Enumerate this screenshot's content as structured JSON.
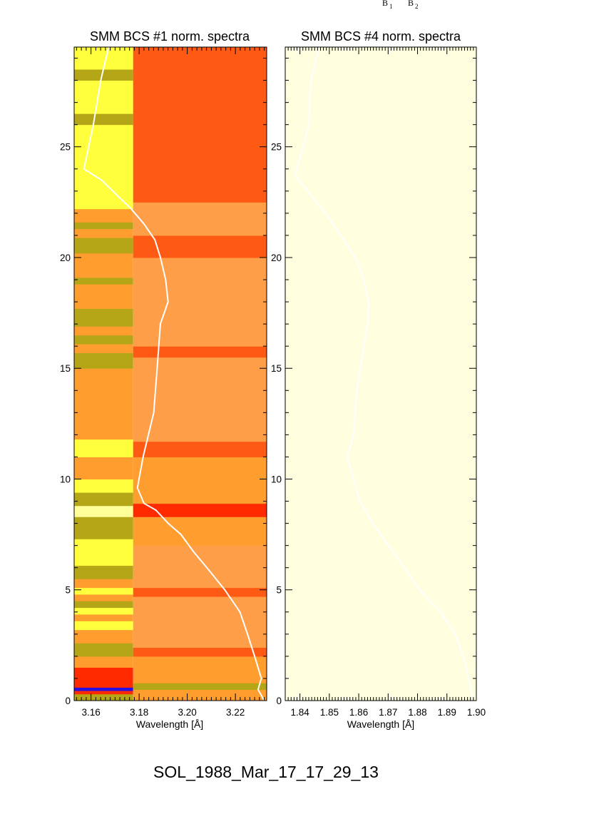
{
  "top_labels": {
    "b1_base": "B",
    "b1_sub": "1",
    "b2_base": "B",
    "b2_sub": "2"
  },
  "caption": "SOL_1988_Mar_17_17_29_13",
  "chart_data": [
    {
      "type": "heatmap",
      "title": "SMM BCS #1 norm. spectra",
      "xlabel": "Wavelength [Å]",
      "ylabel": "",
      "xlim": [
        3.153,
        3.233
      ],
      "ylim": [
        0,
        29.5
      ],
      "xticks": [
        3.16,
        3.18,
        3.2,
        3.22
      ],
      "xtick_labels": [
        "3.16",
        "3.18",
        "3.20",
        "3.22"
      ],
      "yticks": [
        0,
        5,
        10,
        15,
        20,
        25
      ],
      "ytick_labels": [
        "0",
        "5",
        "10",
        "15",
        "20",
        "25"
      ],
      "colors": {
        "orange": "#ff9d2e",
        "light_orange": "#ff9e48",
        "red_orange": "#ff5a14",
        "red": "#ff2a00",
        "yellow": "#ffff3e",
        "olive": "#b4a616",
        "pale_yellow": "#ffff9a",
        "blue": "#2810e0",
        "curve": "#ffffff"
      },
      "short_wavelength_boundary": 3.1775,
      "short_wavelength_bands": [
        {
          "from": 0,
          "to": 0.3,
          "color": "olive"
        },
        {
          "from": 0.3,
          "to": 0.45,
          "color": "red"
        },
        {
          "from": 0.45,
          "to": 0.6,
          "color": "blue"
        },
        {
          "from": 0.6,
          "to": 0.75,
          "color": "red"
        },
        {
          "from": 0.75,
          "to": 1.5,
          "color": "red"
        },
        {
          "from": 1.5,
          "to": 2.0,
          "color": "orange"
        },
        {
          "from": 2.0,
          "to": 2.6,
          "color": "olive"
        },
        {
          "from": 2.6,
          "to": 3.2,
          "color": "orange"
        },
        {
          "from": 3.2,
          "to": 3.6,
          "color": "yellow"
        },
        {
          "from": 3.6,
          "to": 3.9,
          "color": "orange"
        },
        {
          "from": 3.9,
          "to": 4.2,
          "color": "yellow"
        },
        {
          "from": 4.2,
          "to": 4.5,
          "color": "olive"
        },
        {
          "from": 4.5,
          "to": 4.8,
          "color": "orange"
        },
        {
          "from": 4.8,
          "to": 5.1,
          "color": "yellow"
        },
        {
          "from": 5.1,
          "to": 5.5,
          "color": "orange"
        },
        {
          "from": 5.5,
          "to": 6.1,
          "color": "olive"
        },
        {
          "from": 6.1,
          "to": 7.3,
          "color": "yellow"
        },
        {
          "from": 7.3,
          "to": 8.3,
          "color": "olive"
        },
        {
          "from": 8.3,
          "to": 8.8,
          "color": "pale_yellow"
        },
        {
          "from": 8.8,
          "to": 9.4,
          "color": "olive"
        },
        {
          "from": 9.4,
          "to": 10.0,
          "color": "yellow"
        },
        {
          "from": 10.0,
          "to": 11.0,
          "color": "orange"
        },
        {
          "from": 11.0,
          "to": 11.8,
          "color": "yellow"
        },
        {
          "from": 11.8,
          "to": 15.0,
          "color": "orange"
        },
        {
          "from": 15.0,
          "to": 15.7,
          "color": "olive"
        },
        {
          "from": 15.7,
          "to": 16.1,
          "color": "orange"
        },
        {
          "from": 16.1,
          "to": 16.5,
          "color": "olive"
        },
        {
          "from": 16.5,
          "to": 16.9,
          "color": "orange"
        },
        {
          "from": 16.9,
          "to": 17.7,
          "color": "olive"
        },
        {
          "from": 17.7,
          "to": 18.8,
          "color": "orange"
        },
        {
          "from": 18.8,
          "to": 19.1,
          "color": "olive"
        },
        {
          "from": 19.1,
          "to": 20.2,
          "color": "orange"
        },
        {
          "from": 20.2,
          "to": 20.9,
          "color": "olive"
        },
        {
          "from": 20.9,
          "to": 21.3,
          "color": "orange"
        },
        {
          "from": 21.3,
          "to": 21.6,
          "color": "olive"
        },
        {
          "from": 21.6,
          "to": 22.2,
          "color": "orange"
        },
        {
          "from": 22.2,
          "to": 26.0,
          "color": "yellow"
        },
        {
          "from": 26.0,
          "to": 26.5,
          "color": "olive"
        },
        {
          "from": 26.5,
          "to": 28.0,
          "color": "yellow"
        },
        {
          "from": 28.0,
          "to": 28.5,
          "color": "olive"
        },
        {
          "from": 28.5,
          "to": 29.5,
          "color": "yellow"
        }
      ],
      "long_wavelength_bands": [
        {
          "from": 0,
          "to": 0.5,
          "color": "orange"
        },
        {
          "from": 0.5,
          "to": 0.8,
          "color": "olive"
        },
        {
          "from": 0.8,
          "to": 2.0,
          "color": "orange"
        },
        {
          "from": 2.0,
          "to": 2.4,
          "color": "red_orange"
        },
        {
          "from": 2.4,
          "to": 4.7,
          "color": "light_orange"
        },
        {
          "from": 4.7,
          "to": 5.1,
          "color": "red_orange"
        },
        {
          "from": 5.1,
          "to": 7.0,
          "color": "light_orange"
        },
        {
          "from": 7.0,
          "to": 8.3,
          "color": "orange"
        },
        {
          "from": 8.3,
          "to": 8.9,
          "color": "red"
        },
        {
          "from": 8.9,
          "to": 11.0,
          "color": "orange"
        },
        {
          "from": 11.0,
          "to": 11.7,
          "color": "red_orange"
        },
        {
          "from": 11.7,
          "to": 15.5,
          "color": "light_orange"
        },
        {
          "from": 15.5,
          "to": 16.0,
          "color": "red_orange"
        },
        {
          "from": 16.0,
          "to": 20.0,
          "color": "light_orange"
        },
        {
          "from": 20.0,
          "to": 21.0,
          "color": "red_orange"
        },
        {
          "from": 21.0,
          "to": 22.5,
          "color": "light_orange"
        },
        {
          "from": 22.5,
          "to": 29.5,
          "color": "red_orange"
        }
      ],
      "curve": {
        "x": [
          3.232,
          3.229,
          3.23,
          3.227,
          3.224,
          3.221,
          3.215,
          3.208,
          3.203,
          3.198,
          3.193,
          3.188,
          3.183,
          3.18,
          3.182,
          3.186,
          3.187,
          3.188,
          3.191,
          3.19,
          3.188,
          3.186,
          3.182,
          3.177,
          3.165,
          3.158,
          3.162,
          3.165,
          3.168
        ],
        "y": [
          0,
          0.5,
          1.0,
          2.0,
          3.0,
          4.0,
          5.0,
          6.0,
          6.7,
          7.5,
          8.0,
          8.6,
          8.9,
          9.6,
          11.0,
          13.0,
          15.0,
          17.0,
          18.0,
          19.0,
          20.0,
          20.8,
          21.5,
          22.2,
          23.5,
          24.0,
          26.0,
          28.0,
          29.5
        ]
      }
    },
    {
      "type": "heatmap",
      "title": "SMM BCS #4 norm. spectra",
      "xlabel": "Wavelength [Å]",
      "ylabel": "",
      "xlim": [
        1.835,
        1.9
      ],
      "ylim": [
        0,
        29.5
      ],
      "xticks": [
        1.84,
        1.85,
        1.86,
        1.87,
        1.88,
        1.89,
        1.9
      ],
      "xtick_labels": [
        "1.84",
        "1.85",
        "1.86",
        "1.87",
        "1.88",
        "1.89",
        "1.90"
      ],
      "yticks": [
        0,
        5,
        10,
        15,
        20,
        25
      ],
      "ytick_labels": [
        "0",
        "5",
        "10",
        "15",
        "20",
        "25"
      ],
      "colors": {
        "background": "#ffffe0",
        "curve": "#ffffff"
      },
      "curve": {
        "x": [
          1.899,
          1.897,
          1.895,
          1.892,
          1.887,
          1.88,
          1.875,
          1.87,
          1.865,
          1.861,
          1.859,
          1.857,
          1.859,
          1.86,
          1.862,
          1.863,
          1.863,
          1.861,
          1.858,
          1.853,
          1.848,
          1.838,
          1.843,
          1.844,
          1.847
        ],
        "y": [
          0,
          1.0,
          2.0,
          3.0,
          4.0,
          5.0,
          6.0,
          7.0,
          8.0,
          9.0,
          10.0,
          11.0,
          12.0,
          14.0,
          16.0,
          17.0,
          18.0,
          19.0,
          20.0,
          21.0,
          22.0,
          23.7,
          26.0,
          28.0,
          29.5
        ]
      }
    }
  ]
}
